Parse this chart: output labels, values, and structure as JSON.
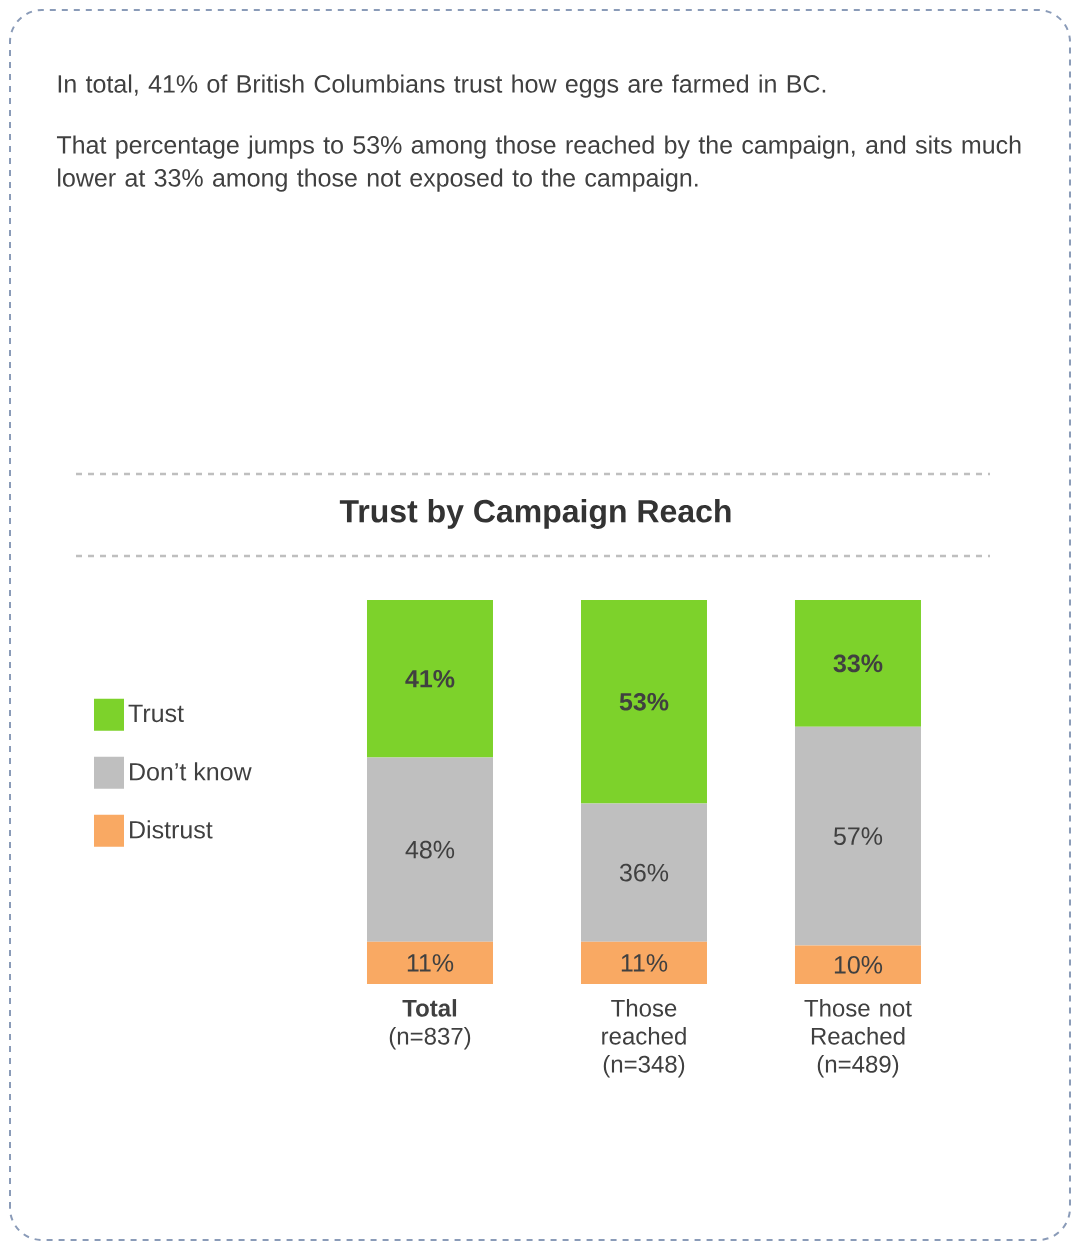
{
  "chart_data": {
    "type": "bar",
    "stacked": true,
    "title": "Trust by Campaign Reach",
    "annotations": [
      "In total, 41% of British Columbians trust how eggs are farmed in BC.",
      "That percentage jumps to 53% among those reached by the campaign, and sits much lower at 33% among those not exposed to the campaign."
    ],
    "categories": [
      "**Total** (n=837)",
      "Those reached (n=348)",
      "Those not Reached (n=489)"
    ],
    "series": [
      {
        "name": "Distrust",
        "color": "#f9a963",
        "values": [
          11,
          11,
          10
        ],
        "value_labels": [
          "11%",
          "11%",
          "10%"
        ]
      },
      {
        "name": "Don’t know",
        "color": "#bfbfbf",
        "values": [
          48,
          36,
          57
        ],
        "value_labels": [
          "48%",
          "36%",
          "57%"
        ]
      },
      {
        "name": "Trust",
        "color": "#7dd22b",
        "values": [
          41,
          53,
          33
        ],
        "value_labels": [
          "41%",
          "53%",
          "33%"
        ]
      }
    ],
    "legend": "left",
    "tick_labels": "x"
  }
}
